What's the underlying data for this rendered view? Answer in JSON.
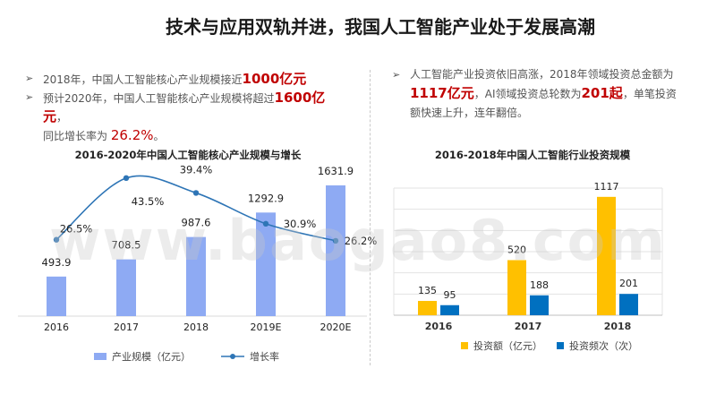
{
  "title": "技术与应用双轨并进，我国人工智能产业处于发展高潮",
  "left_text": {
    "b1_pre": "2018年，中国人工智能核心产业规模接近",
    "b1_hl": "1000亿元",
    "b2_pre": "预计2020年，中国人工智能核心产业规模将超过",
    "b2_hl": "1600亿元",
    "b2_post": "，",
    "b2_line2_pre": "同比增长率为",
    "b2_line2_hl": "26.2%",
    "b2_line2_post": "。"
  },
  "right_text": {
    "line1": "人工智能产业投资依旧高涨，2018年领域投资总金额为",
    "hl1": "1117亿元",
    "mid": "，AI领域投资总轮数为",
    "hl2": "201起",
    "tail": "，单笔投资额快速上升，连年翻倍。"
  },
  "watermark": "www.baogao8.com",
  "arrow": "➢",
  "colors": {
    "bar_blue": "#8eaaf3",
    "line_blue": "#2e75b6",
    "gold": "#ffc000",
    "deep_blue": "#0070c0"
  },
  "chart_data": [
    {
      "type": "bar",
      "title": "2016-2020年中国人工智能核心产业规模与增长",
      "categories": [
        "2016",
        "2017",
        "2018",
        "2019E",
        "2020E"
      ],
      "series": [
        {
          "name": "产业规模（亿元）",
          "type": "bar",
          "values": [
            493.9,
            708.5,
            987.6,
            1292.9,
            1631.9
          ],
          "labels": [
            "493.9",
            "708.5",
            "987.6",
            "1292.9",
            "1631.9"
          ]
        },
        {
          "name": "增长率",
          "type": "line",
          "values": [
            26.5,
            43.5,
            39.4,
            30.9,
            26.2
          ],
          "labels": [
            "26.5%",
            "43.5%",
            "39.4%",
            "30.9%",
            "26.2%"
          ]
        }
      ],
      "legend": "bottom"
    },
    {
      "type": "bar",
      "title": "2016-2018年中国人工智能行业投资规模",
      "categories": [
        "2016",
        "2017",
        "2018"
      ],
      "series": [
        {
          "name": "投资额（亿元）",
          "values": [
            135,
            520,
            1117
          ]
        },
        {
          "name": "投资频次（次）",
          "values": [
            95,
            188,
            201
          ]
        }
      ],
      "legend": "bottom",
      "grid": true
    }
  ]
}
